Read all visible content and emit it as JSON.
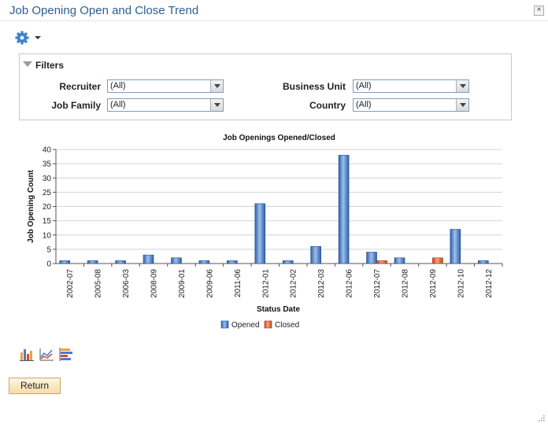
{
  "window": {
    "title": "Job Opening Open and Close Trend",
    "close_label": "×"
  },
  "filters": {
    "heading": "Filters",
    "fields": [
      {
        "label": "Recruiter",
        "value": "(All)"
      },
      {
        "label": "Job Family",
        "value": "(All)"
      },
      {
        "label": "Business Unit",
        "value": "(All)"
      },
      {
        "label": "Country",
        "value": "(All)"
      }
    ]
  },
  "chart_data": {
    "type": "bar",
    "title": "Job Openings Opened/Closed",
    "xlabel": "Status Date",
    "ylabel": "Job Opening Count",
    "ylim": [
      0,
      40
    ],
    "yticks": [
      0,
      5,
      10,
      15,
      20,
      25,
      30,
      35,
      40
    ],
    "grid": true,
    "legend_position": "bottom",
    "categories": [
      "2002-07",
      "2005-08",
      "2006-03",
      "2008-09",
      "2009-01",
      "2009-06",
      "2011-06",
      "2012-01",
      "2012-02",
      "2012-03",
      "2012-06",
      "2012-07",
      "2012-08",
      "2012-09",
      "2012-10",
      "2012-12"
    ],
    "series": [
      {
        "name": "Opened",
        "color": "#4a7cc9",
        "values": [
          1,
          1,
          1,
          3,
          2,
          1,
          1,
          21,
          1,
          6,
          38,
          4,
          2,
          0,
          12,
          1
        ]
      },
      {
        "name": "Closed",
        "color": "#e8663d",
        "values": [
          0,
          0,
          0,
          0,
          0,
          0,
          0,
          0,
          0,
          0,
          0,
          1,
          0,
          2,
          0,
          0
        ]
      }
    ]
  },
  "chart_icons": [
    "bar-chart-icon",
    "line-chart-icon",
    "horizontal-bar-chart-icon"
  ],
  "return_label": "Return",
  "colors": {
    "title": "#2f5f93",
    "gear": "#3d83c9"
  }
}
